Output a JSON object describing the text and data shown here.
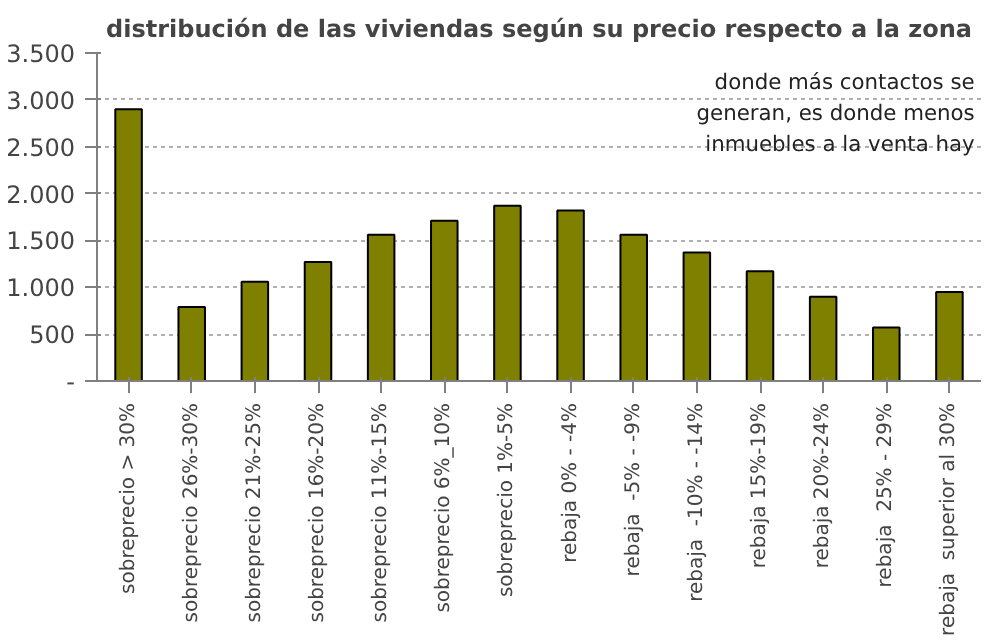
{
  "chart_data": {
    "type": "bar",
    "title": "distribución de las viviendas según su precio respecto a la zona",
    "categories": [
      "sobreprecio > 30%",
      "sobreprecio 26%-30%",
      "sobreprecio 21%-25%",
      "sobreprecio 16%-20%",
      "sobreprecio 11%-15%",
      "sobreprecio 6%_10%",
      "sobreprecio 1%-5%",
      "rebaja 0% - -4%",
      "rebaja  -5% - -9%",
      "rebaja  -10% - -14%",
      "rebaja 15%-19%",
      "rebaja 20%-24%",
      "rebaja  25% - 29%",
      "rebaja  superior al 30%"
    ],
    "values": [
      2900,
      790,
      1060,
      1270,
      1560,
      1710,
      1870,
      1820,
      1560,
      1370,
      1170,
      900,
      570,
      950
    ],
    "color": "#808000",
    "ylim": [
      0,
      3500
    ],
    "yticks": [
      {
        "value": 0,
        "label": "-"
      },
      {
        "value": 500,
        "label": "500"
      },
      {
        "value": 1000,
        "label": "1.000"
      },
      {
        "value": 1500,
        "label": "1.500"
      },
      {
        "value": 2000,
        "label": "2.000"
      },
      {
        "value": 2500,
        "label": "2.500"
      },
      {
        "value": 3000,
        "label": "3.000"
      },
      {
        "value": 3500,
        "label": "3.500"
      }
    ],
    "grid": "y",
    "annotations": [
      "donde más contactos se generan, es donde menos inmuebles a la venta hay"
    ]
  }
}
